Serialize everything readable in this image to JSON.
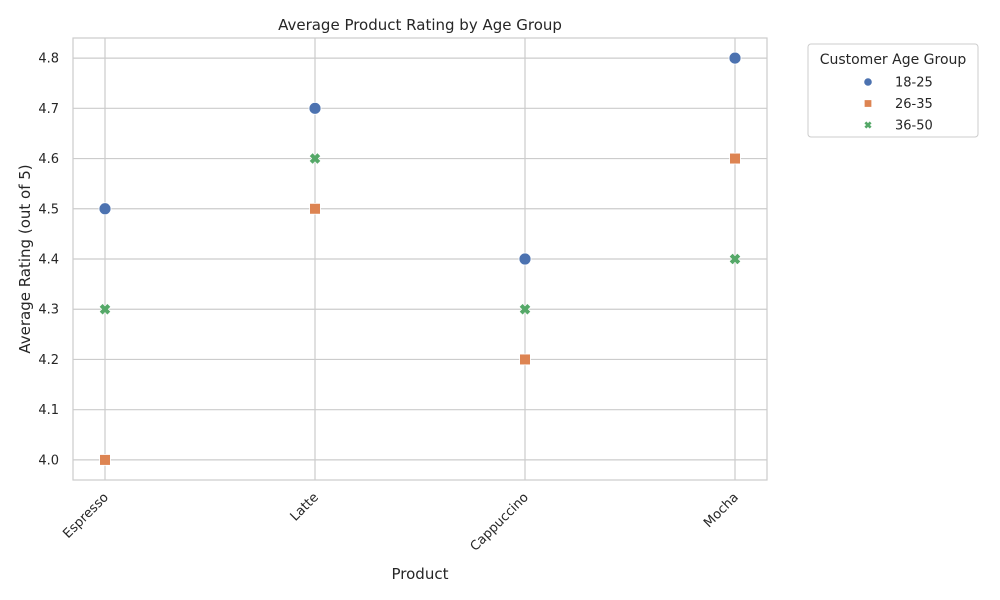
{
  "chart_data": {
    "type": "scatter",
    "title": "Average Product Rating by Age Group",
    "xlabel": "Product",
    "ylabel": "Average Rating (out of 5)",
    "categories": [
      "Espresso",
      "Latte",
      "Cappuccino",
      "Mocha"
    ],
    "yticks": [
      "4.0",
      "4.1",
      "4.2",
      "4.3",
      "4.4",
      "4.5",
      "4.6",
      "4.7",
      "4.8"
    ],
    "ylim": [
      3.96,
      4.84
    ],
    "grid": true,
    "legend": {
      "title": "Customer Age Group",
      "placement": "outside-top-right"
    },
    "series": [
      {
        "name": "18-25",
        "marker": "circle",
        "color": "#4c72b0",
        "values": [
          4.5,
          4.7,
          4.4,
          4.8
        ]
      },
      {
        "name": "26-35",
        "marker": "square",
        "color": "#dd8452",
        "values": [
          4.0,
          4.5,
          4.2,
          4.6
        ]
      },
      {
        "name": "36-50",
        "marker": "x",
        "color": "#55a868",
        "values": [
          4.3,
          4.6,
          4.3,
          4.4
        ]
      }
    ]
  }
}
